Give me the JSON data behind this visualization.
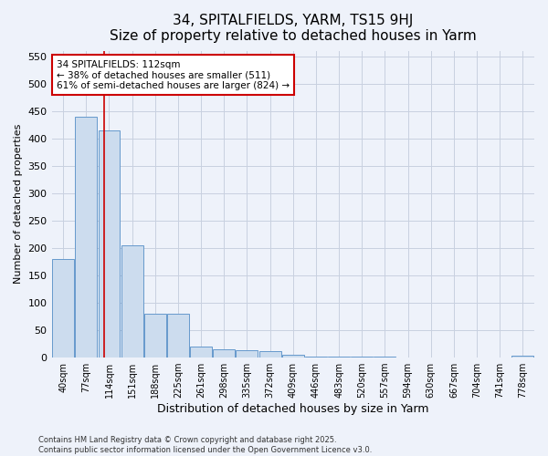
{
  "title": "34, SPITALFIELDS, YARM, TS15 9HJ",
  "subtitle": "Size of property relative to detached houses in Yarm",
  "xlabel": "Distribution of detached houses by size in Yarm",
  "ylabel": "Number of detached properties",
  "categories": [
    "40sqm",
    "77sqm",
    "114sqm",
    "151sqm",
    "188sqm",
    "225sqm",
    "261sqm",
    "298sqm",
    "335sqm",
    "372sqm",
    "409sqm",
    "446sqm",
    "483sqm",
    "520sqm",
    "557sqm",
    "594sqm",
    "630sqm",
    "667sqm",
    "704sqm",
    "741sqm",
    "778sqm"
  ],
  "values": [
    180,
    440,
    415,
    205,
    80,
    80,
    20,
    15,
    13,
    11,
    5,
    1,
    1,
    1,
    1,
    0,
    0,
    0,
    0,
    0,
    4
  ],
  "bar_color": "#ccdcee",
  "bar_edge_color": "#6699cc",
  "grid_color": "#c8d0e0",
  "background_color": "#eef2fa",
  "vline_x": 1.77,
  "vline_color": "#cc0000",
  "annotation_text": "34 SPITALFIELDS: 112sqm\n← 38% of detached houses are smaller (511)\n61% of semi-detached houses are larger (824) →",
  "annotation_box_facecolor": "white",
  "annotation_box_edgecolor": "#cc0000",
  "ylim": [
    0,
    560
  ],
  "yticks": [
    0,
    50,
    100,
    150,
    200,
    250,
    300,
    350,
    400,
    450,
    500,
    550
  ],
  "title_fontsize": 11,
  "subtitle_fontsize": 9,
  "xlabel_fontsize": 9,
  "ylabel_fontsize": 8,
  "footer1": "Contains HM Land Registry data © Crown copyright and database right 2025.",
  "footer2": "Contains public sector information licensed under the Open Government Licence v3.0."
}
